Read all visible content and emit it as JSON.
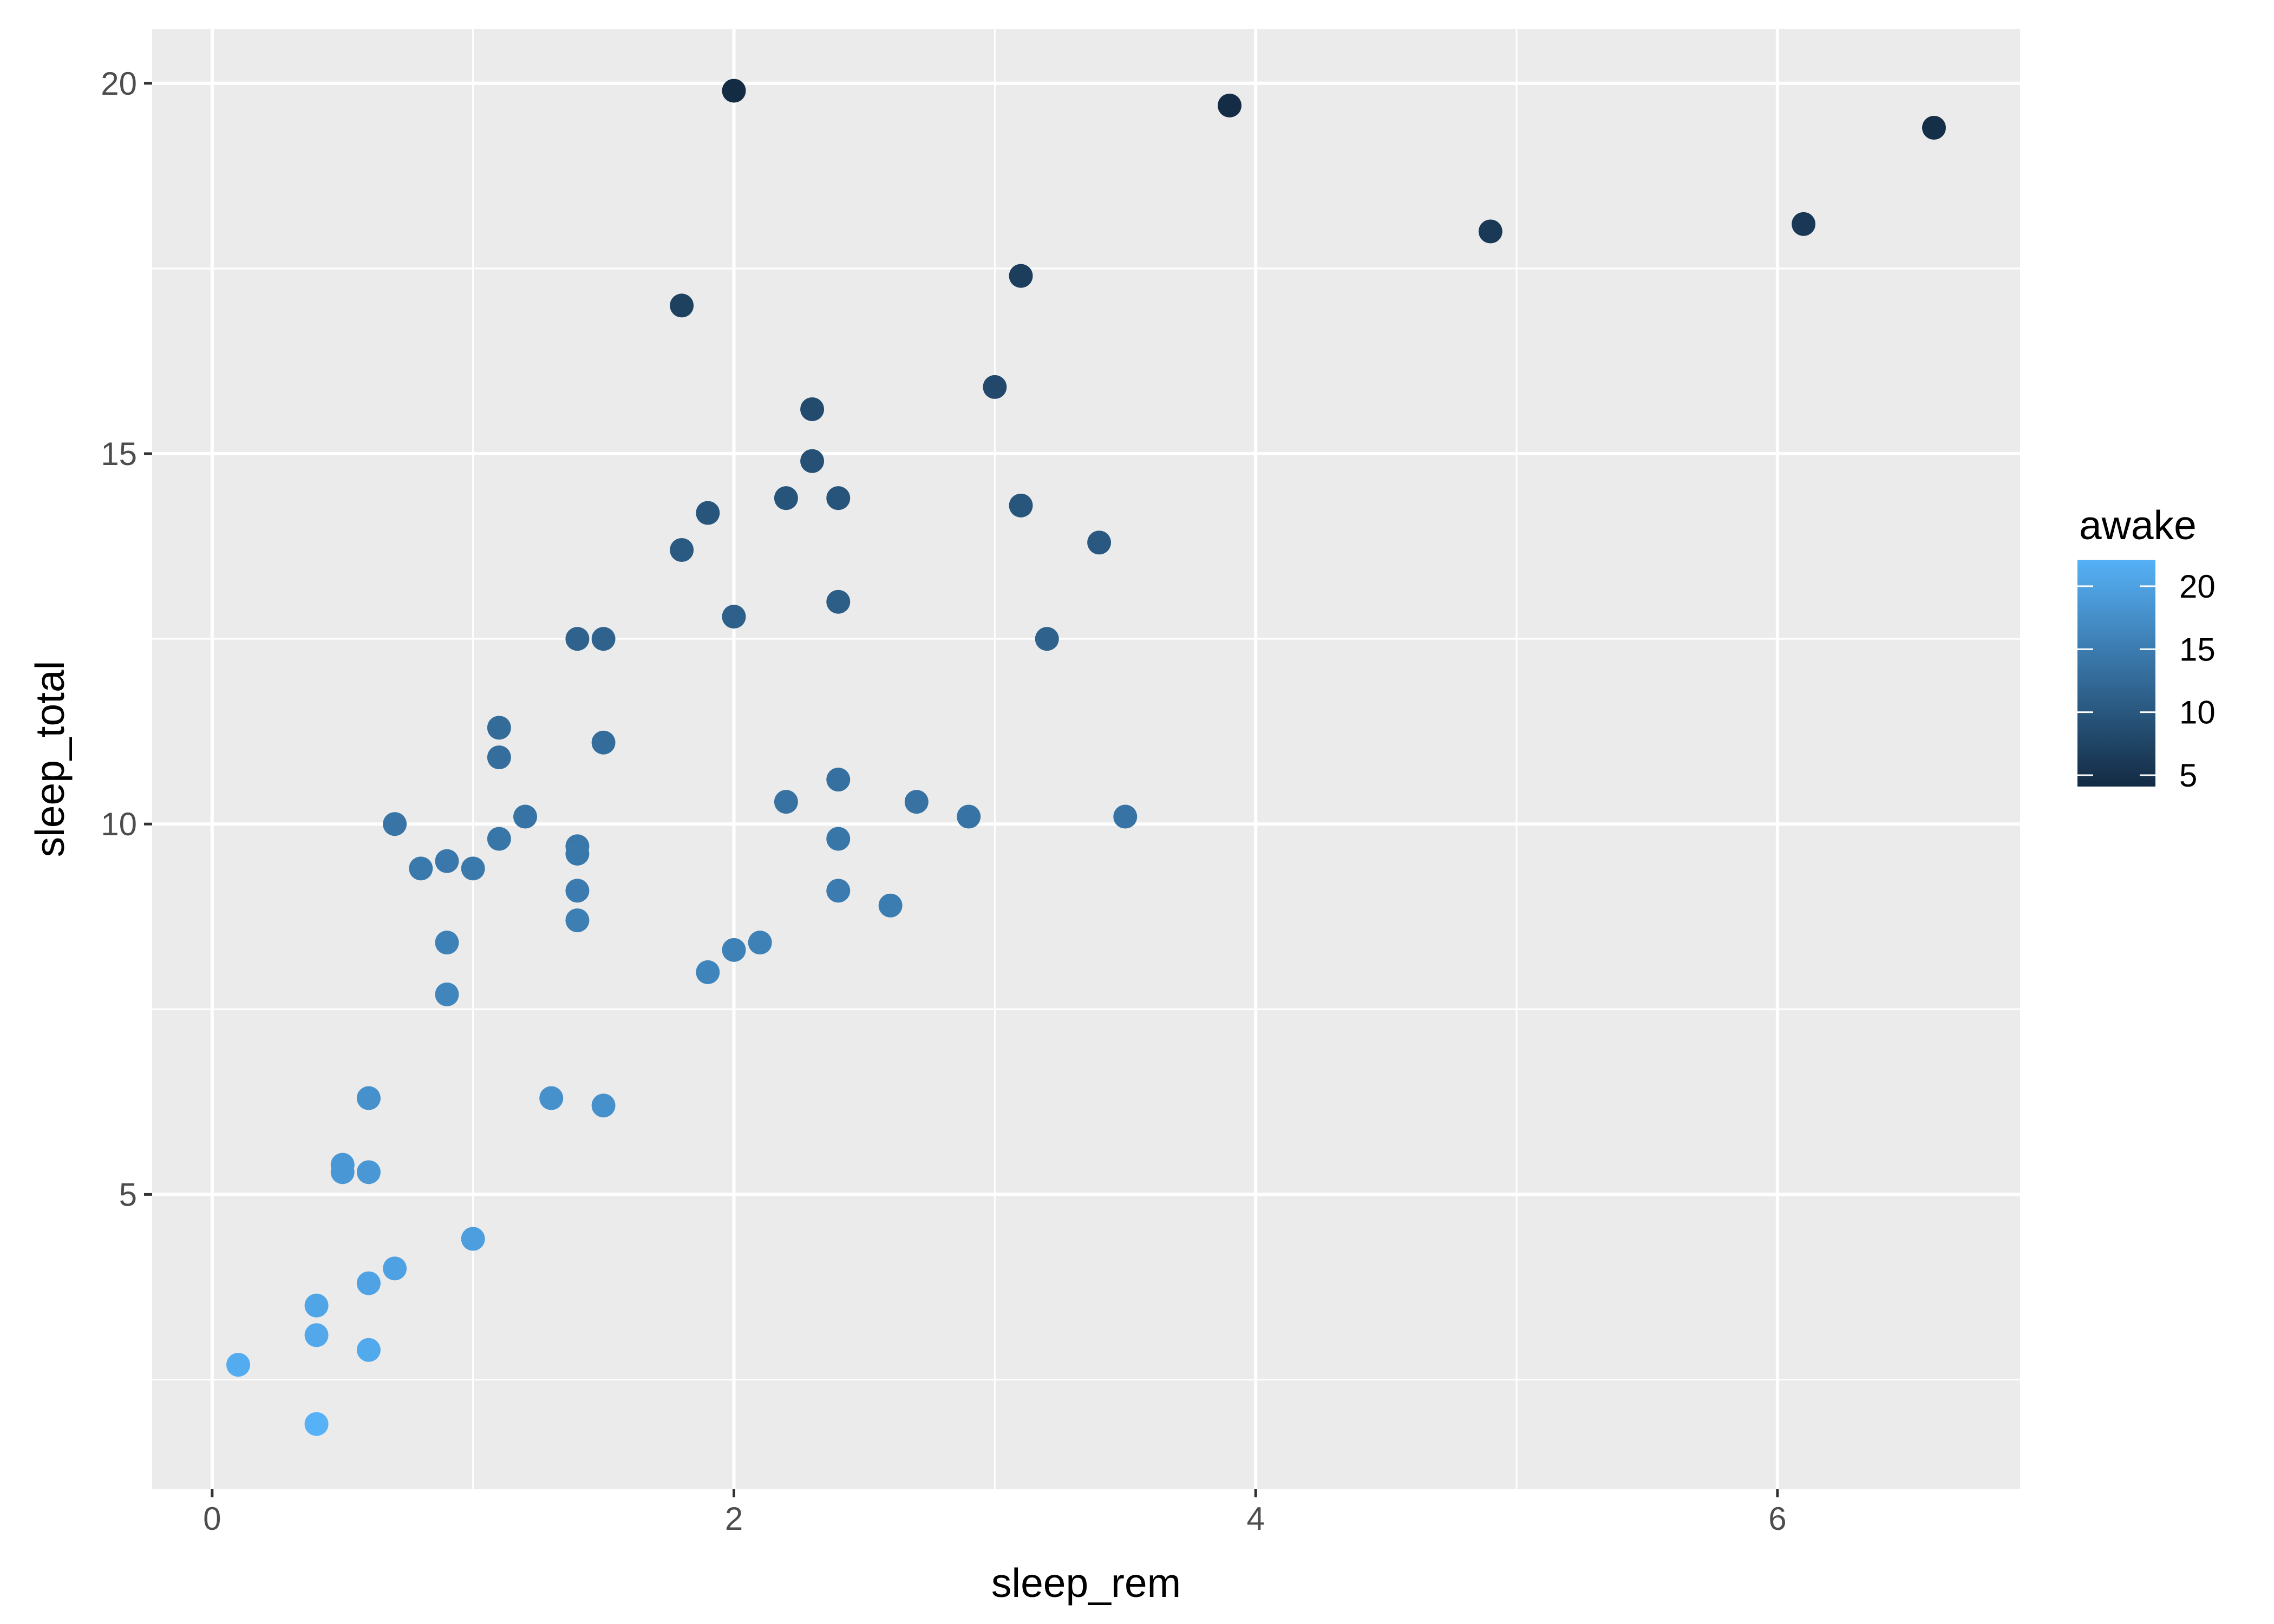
{
  "chart_data": {
    "type": "scatter",
    "xlabel": "sleep_rem",
    "ylabel": "sleep_total",
    "xlim": [
      -0.23,
      6.93
    ],
    "ylim": [
      1.02,
      20.73
    ],
    "x_ticks": [
      0,
      2,
      4,
      6
    ],
    "y_ticks": [
      5,
      10,
      15,
      20
    ],
    "grid": true,
    "background": "#EBEBEB",
    "legend": {
      "title": "awake",
      "placement": "right",
      "type": "colorbar",
      "range": [
        4.1,
        22.1
      ],
      "ticks": [
        5,
        10,
        15,
        20
      ],
      "low_color": "#132B43",
      "high_color": "#56B1F7"
    },
    "points": [
      {
        "x": 2.0,
        "y": 19.9,
        "awake": 4.1
      },
      {
        "x": 3.9,
        "y": 19.7,
        "awake": 4.3
      },
      {
        "x": 6.6,
        "y": 19.4,
        "awake": 4.6
      },
      {
        "x": 4.9,
        "y": 18.0,
        "awake": 6.0
      },
      {
        "x": 6.1,
        "y": 18.1,
        "awake": 5.9
      },
      {
        "x": 3.1,
        "y": 17.4,
        "awake": 6.6
      },
      {
        "x": 1.8,
        "y": 17.0,
        "awake": 7.0
      },
      {
        "x": 3.0,
        "y": 15.9,
        "awake": 8.1
      },
      {
        "x": 2.3,
        "y": 15.6,
        "awake": 8.4
      },
      {
        "x": 2.3,
        "y": 14.9,
        "awake": 9.1
      },
      {
        "x": 1.9,
        "y": 14.2,
        "awake": 9.8
      },
      {
        "x": 2.2,
        "y": 14.4,
        "awake": 9.6
      },
      {
        "x": 2.4,
        "y": 14.4,
        "awake": 9.6
      },
      {
        "x": 3.1,
        "y": 14.3,
        "awake": 9.7
      },
      {
        "x": 3.4,
        "y": 13.8,
        "awake": 10.2
      },
      {
        "x": 1.8,
        "y": 13.7,
        "awake": 10.3
      },
      {
        "x": 2.4,
        "y": 13.0,
        "awake": 11.0
      },
      {
        "x": 2.0,
        "y": 12.8,
        "awake": 11.2
      },
      {
        "x": 1.4,
        "y": 12.5,
        "awake": 11.5
      },
      {
        "x": 1.5,
        "y": 12.5,
        "awake": 11.5
      },
      {
        "x": 3.2,
        "y": 12.5,
        "awake": 11.5
      },
      {
        "x": 1.1,
        "y": 11.3,
        "awake": 12.7
      },
      {
        "x": 1.1,
        "y": 10.9,
        "awake": 13.1
      },
      {
        "x": 1.5,
        "y": 11.1,
        "awake": 12.9
      },
      {
        "x": 2.4,
        "y": 10.6,
        "awake": 13.4
      },
      {
        "x": 2.2,
        "y": 10.3,
        "awake": 13.7
      },
      {
        "x": 2.7,
        "y": 10.3,
        "awake": 13.7
      },
      {
        "x": 2.9,
        "y": 10.1,
        "awake": 13.9
      },
      {
        "x": 3.5,
        "y": 10.1,
        "awake": 13.9
      },
      {
        "x": 0.7,
        "y": 10.0,
        "awake": 14.0
      },
      {
        "x": 1.2,
        "y": 10.1,
        "awake": 13.9
      },
      {
        "x": 1.1,
        "y": 9.8,
        "awake": 14.2
      },
      {
        "x": 2.4,
        "y": 9.8,
        "awake": 14.2
      },
      {
        "x": 1.4,
        "y": 9.7,
        "awake": 14.3
      },
      {
        "x": 1.4,
        "y": 9.6,
        "awake": 14.4
      },
      {
        "x": 0.8,
        "y": 9.4,
        "awake": 14.6
      },
      {
        "x": 0.9,
        "y": 9.5,
        "awake": 14.5
      },
      {
        "x": 1.0,
        "y": 9.4,
        "awake": 14.6
      },
      {
        "x": 1.4,
        "y": 9.1,
        "awake": 14.9
      },
      {
        "x": 2.4,
        "y": 9.1,
        "awake": 14.9
      },
      {
        "x": 2.6,
        "y": 8.9,
        "awake": 15.1
      },
      {
        "x": 1.4,
        "y": 8.7,
        "awake": 15.3
      },
      {
        "x": 0.9,
        "y": 8.4,
        "awake": 15.6
      },
      {
        "x": 2.1,
        "y": 8.4,
        "awake": 15.6
      },
      {
        "x": 2.0,
        "y": 8.3,
        "awake": 15.7
      },
      {
        "x": 1.9,
        "y": 8.0,
        "awake": 16.0
      },
      {
        "x": 0.9,
        "y": 7.7,
        "awake": 16.3
      },
      {
        "x": 0.6,
        "y": 6.3,
        "awake": 17.7
      },
      {
        "x": 1.3,
        "y": 6.3,
        "awake": 17.7
      },
      {
        "x": 1.5,
        "y": 6.2,
        "awake": 17.8
      },
      {
        "x": 0.5,
        "y": 5.4,
        "awake": 18.6
      },
      {
        "x": 0.5,
        "y": 5.3,
        "awake": 18.7
      },
      {
        "x": 0.6,
        "y": 5.3,
        "awake": 18.7
      },
      {
        "x": 1.0,
        "y": 4.4,
        "awake": 19.6
      },
      {
        "x": 0.7,
        "y": 4.0,
        "awake": 20.0
      },
      {
        "x": 0.6,
        "y": 3.8,
        "awake": 20.2
      },
      {
        "x": 0.4,
        "y": 3.5,
        "awake": 20.5
      },
      {
        "x": 0.4,
        "y": 3.1,
        "awake": 20.9
      },
      {
        "x": 0.6,
        "y": 2.9,
        "awake": 21.1
      },
      {
        "x": 0.1,
        "y": 2.7,
        "awake": 21.35
      },
      {
        "x": 0.4,
        "y": 1.9,
        "awake": 22.1
      }
    ]
  }
}
